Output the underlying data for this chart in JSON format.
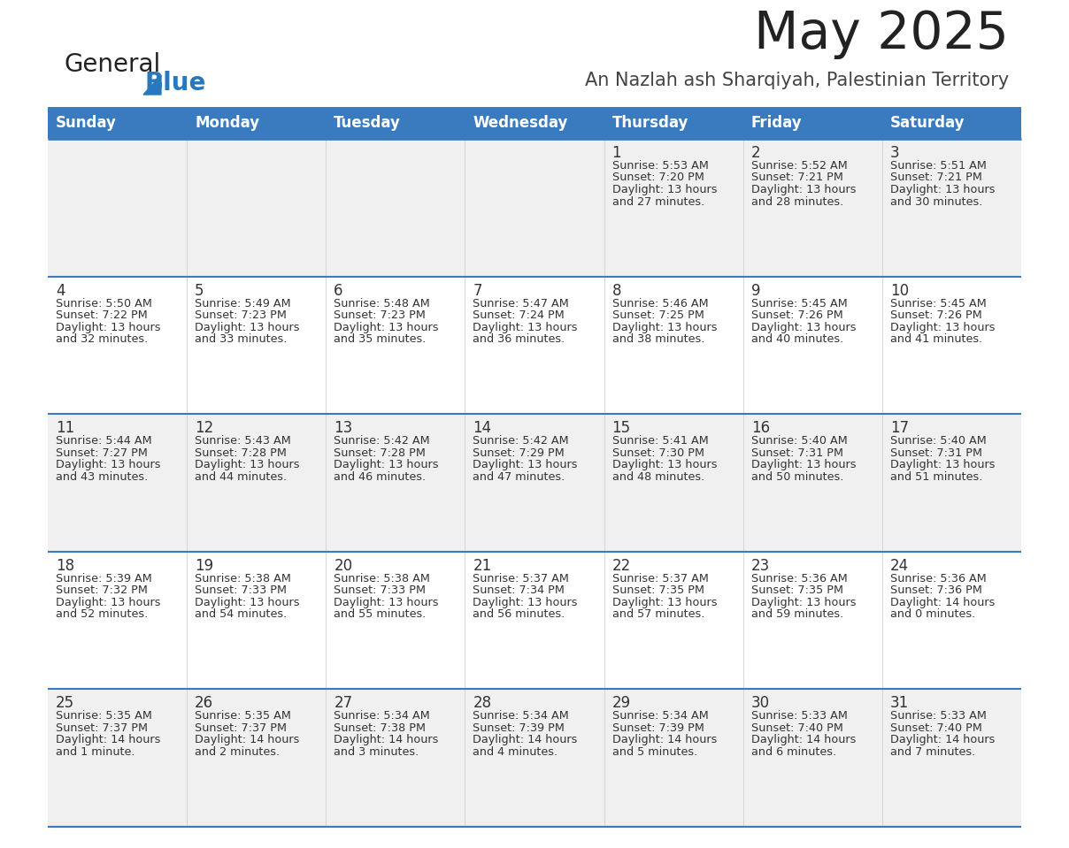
{
  "title": "May 2025",
  "subtitle": "An Nazlah ash Sharqiyah, Palestinian Territory",
  "header_bg": "#3a7abf",
  "header_text": "#ffffff",
  "row_bg_odd": "#f0f0f0",
  "row_bg_even": "#ffffff",
  "day_headers": [
    "Sunday",
    "Monday",
    "Tuesday",
    "Wednesday",
    "Thursday",
    "Friday",
    "Saturday"
  ],
  "calendar": [
    [
      {
        "day": "",
        "sunrise": "",
        "sunset": "",
        "daylight": ""
      },
      {
        "day": "",
        "sunrise": "",
        "sunset": "",
        "daylight": ""
      },
      {
        "day": "",
        "sunrise": "",
        "sunset": "",
        "daylight": ""
      },
      {
        "day": "",
        "sunrise": "",
        "sunset": "",
        "daylight": ""
      },
      {
        "day": "1",
        "sunrise": "5:53 AM",
        "sunset": "7:20 PM",
        "daylight": "13 hours\nand 27 minutes."
      },
      {
        "day": "2",
        "sunrise": "5:52 AM",
        "sunset": "7:21 PM",
        "daylight": "13 hours\nand 28 minutes."
      },
      {
        "day": "3",
        "sunrise": "5:51 AM",
        "sunset": "7:21 PM",
        "daylight": "13 hours\nand 30 minutes."
      }
    ],
    [
      {
        "day": "4",
        "sunrise": "5:50 AM",
        "sunset": "7:22 PM",
        "daylight": "13 hours\nand 32 minutes."
      },
      {
        "day": "5",
        "sunrise": "5:49 AM",
        "sunset": "7:23 PM",
        "daylight": "13 hours\nand 33 minutes."
      },
      {
        "day": "6",
        "sunrise": "5:48 AM",
        "sunset": "7:23 PM",
        "daylight": "13 hours\nand 35 minutes."
      },
      {
        "day": "7",
        "sunrise": "5:47 AM",
        "sunset": "7:24 PM",
        "daylight": "13 hours\nand 36 minutes."
      },
      {
        "day": "8",
        "sunrise": "5:46 AM",
        "sunset": "7:25 PM",
        "daylight": "13 hours\nand 38 minutes."
      },
      {
        "day": "9",
        "sunrise": "5:45 AM",
        "sunset": "7:26 PM",
        "daylight": "13 hours\nand 40 minutes."
      },
      {
        "day": "10",
        "sunrise": "5:45 AM",
        "sunset": "7:26 PM",
        "daylight": "13 hours\nand 41 minutes."
      }
    ],
    [
      {
        "day": "11",
        "sunrise": "5:44 AM",
        "sunset": "7:27 PM",
        "daylight": "13 hours\nand 43 minutes."
      },
      {
        "day": "12",
        "sunrise": "5:43 AM",
        "sunset": "7:28 PM",
        "daylight": "13 hours\nand 44 minutes."
      },
      {
        "day": "13",
        "sunrise": "5:42 AM",
        "sunset": "7:28 PM",
        "daylight": "13 hours\nand 46 minutes."
      },
      {
        "day": "14",
        "sunrise": "5:42 AM",
        "sunset": "7:29 PM",
        "daylight": "13 hours\nand 47 minutes."
      },
      {
        "day": "15",
        "sunrise": "5:41 AM",
        "sunset": "7:30 PM",
        "daylight": "13 hours\nand 48 minutes."
      },
      {
        "day": "16",
        "sunrise": "5:40 AM",
        "sunset": "7:31 PM",
        "daylight": "13 hours\nand 50 minutes."
      },
      {
        "day": "17",
        "sunrise": "5:40 AM",
        "sunset": "7:31 PM",
        "daylight": "13 hours\nand 51 minutes."
      }
    ],
    [
      {
        "day": "18",
        "sunrise": "5:39 AM",
        "sunset": "7:32 PM",
        "daylight": "13 hours\nand 52 minutes."
      },
      {
        "day": "19",
        "sunrise": "5:38 AM",
        "sunset": "7:33 PM",
        "daylight": "13 hours\nand 54 minutes."
      },
      {
        "day": "20",
        "sunrise": "5:38 AM",
        "sunset": "7:33 PM",
        "daylight": "13 hours\nand 55 minutes."
      },
      {
        "day": "21",
        "sunrise": "5:37 AM",
        "sunset": "7:34 PM",
        "daylight": "13 hours\nand 56 minutes."
      },
      {
        "day": "22",
        "sunrise": "5:37 AM",
        "sunset": "7:35 PM",
        "daylight": "13 hours\nand 57 minutes."
      },
      {
        "day": "23",
        "sunrise": "5:36 AM",
        "sunset": "7:35 PM",
        "daylight": "13 hours\nand 59 minutes."
      },
      {
        "day": "24",
        "sunrise": "5:36 AM",
        "sunset": "7:36 PM",
        "daylight": "14 hours\nand 0 minutes."
      }
    ],
    [
      {
        "day": "25",
        "sunrise": "5:35 AM",
        "sunset": "7:37 PM",
        "daylight": "14 hours\nand 1 minute."
      },
      {
        "day": "26",
        "sunrise": "5:35 AM",
        "sunset": "7:37 PM",
        "daylight": "14 hours\nand 2 minutes."
      },
      {
        "day": "27",
        "sunrise": "5:34 AM",
        "sunset": "7:38 PM",
        "daylight": "14 hours\nand 3 minutes."
      },
      {
        "day": "28",
        "sunrise": "5:34 AM",
        "sunset": "7:39 PM",
        "daylight": "14 hours\nand 4 minutes."
      },
      {
        "day": "29",
        "sunrise": "5:34 AM",
        "sunset": "7:39 PM",
        "daylight": "14 hours\nand 5 minutes."
      },
      {
        "day": "30",
        "sunrise": "5:33 AM",
        "sunset": "7:40 PM",
        "daylight": "14 hours\nand 6 minutes."
      },
      {
        "day": "31",
        "sunrise": "5:33 AM",
        "sunset": "7:40 PM",
        "daylight": "14 hours\nand 7 minutes."
      }
    ]
  ],
  "logo_general_color": "#222222",
  "logo_blue_color": "#2878be",
  "line_color": "#3a7abf",
  "cell_text_color": "#333333",
  "day_num_color": "#333333",
  "title_color": "#222222",
  "subtitle_color": "#444444"
}
